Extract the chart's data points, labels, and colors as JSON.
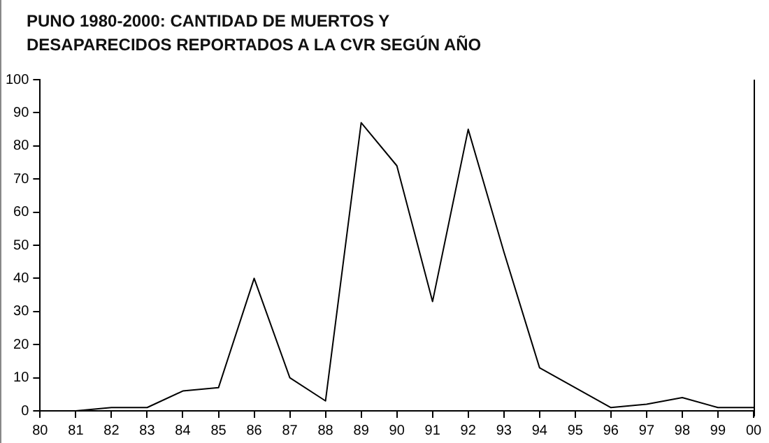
{
  "chart_data": {
    "type": "line",
    "title": "PUNO 1980-2000: CANTIDAD DE MUERTOS Y DESAPARECIDOS REPORTADOS A LA CVR SEGÚN AÑO",
    "categories": [
      "80",
      "81",
      "82",
      "83",
      "84",
      "85",
      "86",
      "87",
      "88",
      "89",
      "90",
      "91",
      "92",
      "93",
      "94",
      "95",
      "96",
      "97",
      "98",
      "99",
      "00"
    ],
    "series": [
      {
        "color": "#000000",
        "values": [
          null,
          0,
          1,
          1,
          6,
          7,
          40,
          10,
          3,
          87,
          74,
          33,
          85,
          48,
          13,
          7,
          1,
          2,
          4,
          1,
          1
        ]
      }
    ],
    "ylim": [
      0,
      100
    ],
    "yticks": [
      0,
      10,
      20,
      30,
      40,
      50,
      60,
      70,
      80,
      90,
      100
    ],
    "grid": false,
    "legend": false,
    "marker": "none",
    "line_style": "solid"
  }
}
